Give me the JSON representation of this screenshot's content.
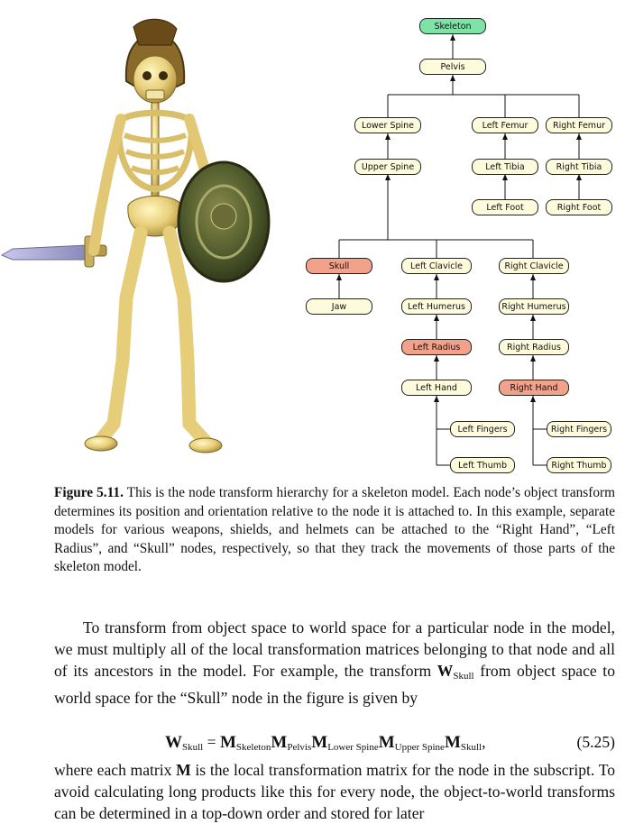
{
  "tree": {
    "nodes": {
      "skeleton": "Skeleton",
      "pelvis": "Pelvis",
      "lower_spine": "Lower Spine",
      "upper_spine": "Upper Spine",
      "left_femur": "Left Femur",
      "left_tibia": "Left Tibia",
      "left_foot": "Left Foot",
      "right_femur": "Right Femur",
      "right_tibia": "Right Tibia",
      "right_foot": "Right Foot",
      "skull": "Skull",
      "jaw": "Jaw",
      "left_clavicle": "Left Clavicle",
      "left_humerus": "Left Humerus",
      "left_radius": "Left Radius",
      "left_hand": "Left Hand",
      "left_fingers": "Left Fingers",
      "left_thumb": "Left Thumb",
      "right_clavicle": "Right Clavicle",
      "right_humerus": "Right Humerus",
      "right_radius": "Right Radius",
      "right_hand": "Right Hand",
      "right_fingers": "Right Fingers",
      "right_thumb": "Right Thumb"
    },
    "colors": {
      "root": "#7fe3a8",
      "attach": "#f2a28a",
      "default": "#fdfbdc"
    }
  },
  "caption": {
    "label": "Figure 5.11.",
    "text": " This is the node transform hierarchy for a skeleton model. Each node’s object transform determines its position and orientation relative to the node it is attached to. In this example, separate models for various weapons, shields, and helmets can be attached to the “Right Hand”, “Left Radius”, and “Skull” nodes, respectively, so that they track the movements of those parts of the skeleton model."
  },
  "body": {
    "p1_a": "To transform from object space to world space for a particular node in the model, we must multiply all of the local transformation matrices belonging to that node and all of its ancestors in the model. For example, the transform ",
    "p1_w": "W",
    "p1_sub": "Skull",
    "p1_b": " from object space to world space for the “Skull” node in the figure is given by",
    "eq": {
      "lhs": "W",
      "lhs_sub": "Skull",
      "equals": " = ",
      "m": "M",
      "subs": [
        "Skeleton",
        "Pelvis",
        "Lower Spine",
        "Upper Spine",
        "Skull"
      ],
      "tail": ",",
      "number": "(5.25)"
    },
    "p2_a": "where each matrix ",
    "p2_m": "M",
    "p2_b": " is the local transformation matrix for the node in the subscript. To avoid calculating long products like this for every node, the object-to-world transforms can be determined in a top-down order and stored for later"
  }
}
